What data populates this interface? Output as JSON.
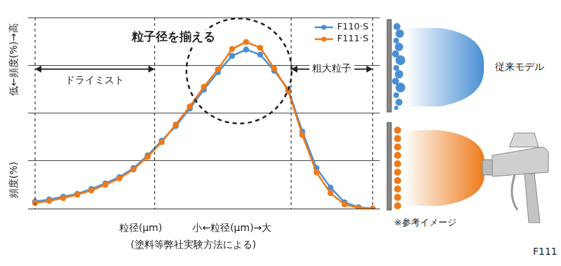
{
  "chart_data": {
    "type": "line",
    "annotation": "粒子径を揃える",
    "left_range_label": "ドライミスト",
    "right_range_label": "粗大粒子",
    "x_labels": [
      "粒径(μm)",
      "小←粒径(μm)→大"
    ],
    "y_labels": [
      "低←頻度(%)→高",
      "頻度(%)"
    ],
    "note": "(塗料等弊社実験方法による)",
    "categories": [
      null,
      null,
      null,
      null,
      null,
      null,
      null,
      null,
      null,
      null,
      null,
      null,
      null,
      null,
      null,
      null,
      null,
      null,
      null,
      null,
      null,
      null,
      null,
      null,
      null
    ],
    "series": [
      {
        "name": "F110·S",
        "color": "#4a8fd4",
        "values": [
          3.7,
          4.8,
          6.2,
          7.7,
          10.3,
          13.2,
          16.5,
          21.2,
          27.8,
          35.5,
          43.2,
          52.4,
          62.3,
          71.4,
          79.9,
          83.2,
          80.6,
          72.2,
          62.3,
          40.3,
          21.2,
          11.0,
          3.3,
          0.7,
          0
        ]
      },
      {
        "name": "F111·S",
        "color": "#ee7a1a",
        "values": [
          2.9,
          4.0,
          5.5,
          7.3,
          9.5,
          12.5,
          15.8,
          20.5,
          27.1,
          34.8,
          44.0,
          53.5,
          63.7,
          72.9,
          83.5,
          87.2,
          84.2,
          73.3,
          61.5,
          38.5,
          19.0,
          8.1,
          2.2,
          0.4,
          0
        ]
      }
    ],
    "ylim": [
      0,
      100
    ],
    "yticks": [
      0,
      25,
      50,
      75,
      100
    ],
    "grid": true,
    "legend": "upper right",
    "tick_labels": false,
    "marker": "circle"
  },
  "illustration": {
    "top_label": "従来モデル",
    "note": "※参考イメージ",
    "gun_label": "F111"
  }
}
